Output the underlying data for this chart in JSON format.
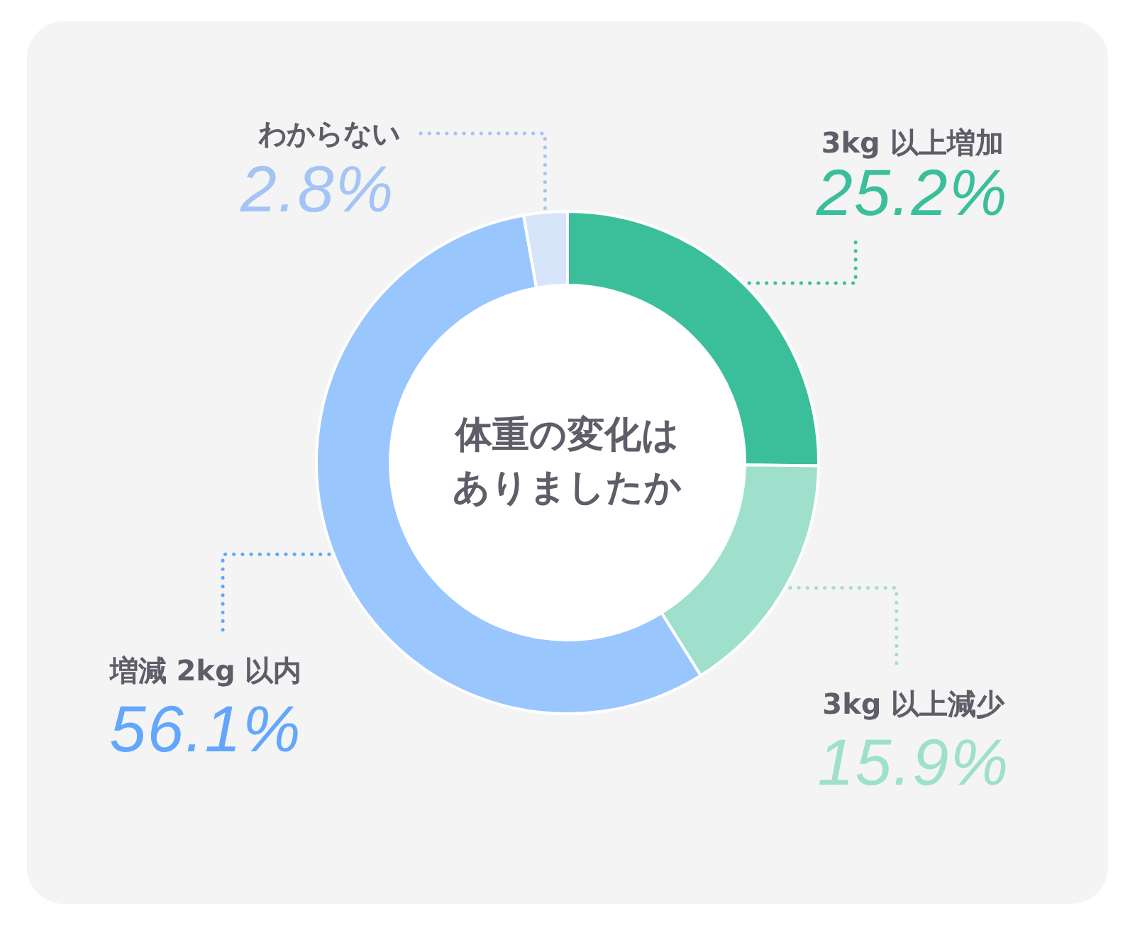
{
  "chart_data": {
    "type": "donut",
    "title": "体重の変化はありましたか",
    "categories": [
      "3kg 以上増加",
      "3kg 以上減少",
      "増減 2kg 以内",
      "わからない"
    ],
    "values": [
      25.2,
      15.9,
      56.1,
      2.8
    ],
    "colors": [
      "#3bbf9b",
      "#9ee0cc",
      "#9ac6fe",
      "#d7e5fb"
    ],
    "value_labels": [
      "25.2%",
      "15.9%",
      "56.1%",
      "2.8%"
    ]
  }
}
